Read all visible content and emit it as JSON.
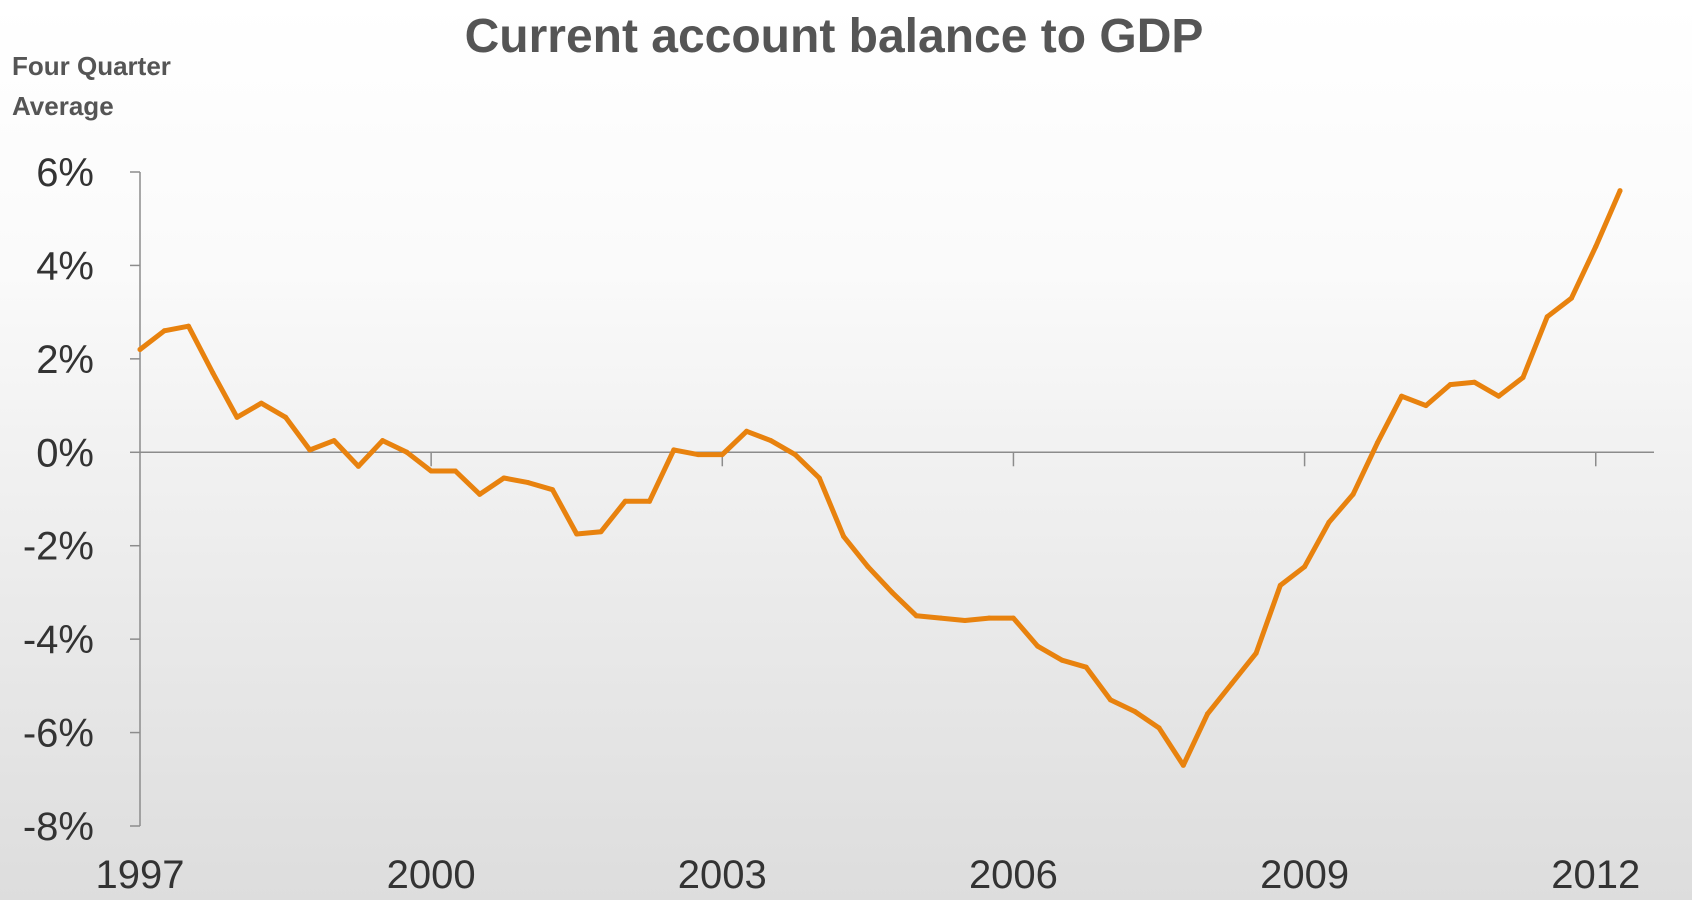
{
  "chart_data": {
    "type": "line",
    "title": "Current account balance to GDP",
    "unit_label_lines": [
      "Four Quarter",
      "Average"
    ],
    "ylim": [
      -8,
      6
    ],
    "yticks": [
      6,
      4,
      2,
      0,
      -2,
      -4,
      -6,
      -8
    ],
    "ytick_labels": [
      "6%",
      "4%",
      "2%",
      "0%",
      "-2%",
      "-4%",
      "-6%",
      "-8%"
    ],
    "xlim": [
      1997,
      2012.25
    ],
    "xticks": [
      1997,
      2000,
      2003,
      2006,
      2009,
      2012
    ],
    "xtick_labels": [
      "1997",
      "2000",
      "2003",
      "2006",
      "2009",
      "2012"
    ],
    "grid": false,
    "line_color": "#E8820E",
    "series": [
      {
        "x": [
          1997.0,
          1997.25,
          1997.5,
          1997.75,
          1998.0,
          1998.25,
          1998.5,
          1998.75,
          1999.0,
          1999.25,
          1999.5,
          1999.75,
          2000.0,
          2000.25,
          2000.5,
          2000.75,
          2001.0,
          2001.25,
          2001.5,
          2001.75,
          2002.0,
          2002.25,
          2002.5,
          2002.75,
          2003.0,
          2003.25,
          2003.5,
          2003.75,
          2004.0,
          2004.25,
          2004.5,
          2004.75,
          2005.0,
          2005.25,
          2005.5,
          2005.75,
          2006.0,
          2006.25,
          2006.5,
          2006.75,
          2007.0,
          2007.25,
          2007.5,
          2007.75,
          2008.0,
          2008.25,
          2008.5,
          2008.75,
          2009.0,
          2009.25,
          2009.5,
          2009.75,
          2010.0,
          2010.25,
          2010.5,
          2010.75,
          2011.0,
          2011.25,
          2011.5,
          2011.75,
          2012.0,
          2012.25
        ],
        "values": [
          2.2,
          2.6,
          2.7,
          1.7,
          0.75,
          1.05,
          0.75,
          0.05,
          0.25,
          -0.3,
          0.25,
          0.0,
          -0.4,
          -0.4,
          -0.9,
          -0.55,
          -0.65,
          -0.8,
          -1.75,
          -1.7,
          -1.05,
          -1.05,
          0.05,
          -0.05,
          -0.05,
          0.45,
          0.25,
          -0.05,
          -0.55,
          -1.8,
          -2.45,
          -3.0,
          -3.5,
          -3.55,
          -3.6,
          -3.55,
          -3.55,
          -4.15,
          -4.45,
          -4.6,
          -5.3,
          -5.55,
          -5.9,
          -6.7,
          -5.6,
          -4.95,
          -4.3,
          -2.85,
          -2.45,
          -1.5,
          -0.9,
          0.2,
          1.2,
          1.0,
          1.45,
          1.5,
          1.2,
          1.6,
          2.9,
          3.3,
          4.4,
          5.6
        ]
      }
    ]
  }
}
